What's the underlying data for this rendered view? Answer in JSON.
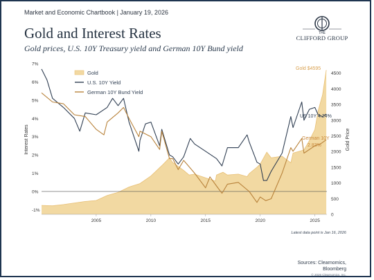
{
  "header": {
    "kicker": "Market and Economic Chartbook | January 19, 2026",
    "title": "Gold and Interest Rates",
    "subtitle": "Gold prices, U.S. 10Y Treasury yield and German 10Y Bund yield"
  },
  "brand": {
    "logo_icon": "clifford-group-seal-icon",
    "the": "THE",
    "name": "CLIFFORD GROUP"
  },
  "colors": {
    "gold_fill": "#f2d9a2",
    "gold_line": "#e8bf74",
    "us10y": "#2f3e52",
    "bund": "#b8823a",
    "zero_line": "#555555"
  },
  "chart_data": {
    "type": "line",
    "xlim": [
      2000,
      2026.1
    ],
    "x_ticks": [
      "2005",
      "2010",
      "2015",
      "2020",
      "2025"
    ],
    "x_tick_values": [
      2005,
      2010,
      2015,
      2020,
      2025
    ],
    "ylabel_left": "Interest Rates",
    "ylabel_right": "Gold Price",
    "ylim_left": [
      -1.25,
      7
    ],
    "ylim_right": [
      0,
      4800
    ],
    "left_ticks": [
      "7%",
      "6%",
      "5%",
      "4%",
      "3%",
      "2%",
      "1%",
      "0%",
      "-1%"
    ],
    "left_tick_values": [
      7,
      6,
      5,
      4,
      3,
      2,
      1,
      0,
      -1
    ],
    "right_ticks": [
      "4500",
      "4000",
      "3500",
      "3000",
      "2500",
      "2000",
      "1500",
      "1000",
      "500",
      "0"
    ],
    "right_tick_values": [
      4500,
      4000,
      3500,
      3000,
      2500,
      2000,
      1500,
      1000,
      500,
      0
    ],
    "legend": [
      "Gold",
      "U.S. 10Y Yield",
      "German 10Y Bund Yield"
    ],
    "legend_position": "top-left",
    "series": [
      {
        "name": "Gold",
        "axis": "right",
        "kind": "area",
        "x": [
          2000,
          2001,
          2002,
          2003,
          2004,
          2005,
          2006,
          2007,
          2008,
          2009,
          2010,
          2011,
          2011.7,
          2012,
          2013,
          2013.5,
          2014,
          2015,
          2015.9,
          2016,
          2016.6,
          2017,
          2018,
          2018.8,
          2019,
          2019.7,
          2020,
          2020.6,
          2021,
          2022,
          2022.8,
          2023,
          2024,
          2024.5,
          2025,
          2025.3,
          2025.7,
          2026.04
        ],
        "values": [
          285,
          270,
          310,
          360,
          410,
          440,
          600,
          700,
          870,
          980,
          1220,
          1550,
          1800,
          1650,
          1400,
          1250,
          1280,
          1160,
          1060,
          1250,
          1340,
          1250,
          1280,
          1200,
          1300,
          1500,
          1600,
          1980,
          1800,
          1850,
          1640,
          1950,
          2050,
          2350,
          2700,
          3300,
          3800,
          4595
        ]
      },
      {
        "name": "U.S. 10Y Yield",
        "axis": "left",
        "x": [
          2000,
          2000.5,
          2001,
          2002,
          2003,
          2003.5,
          2004,
          2005,
          2006,
          2006.5,
          2007,
          2007.5,
          2008,
          2008.9,
          2009,
          2009.5,
          2010,
          2010.8,
          2011,
          2011.7,
          2012,
          2012.5,
          2013,
          2013.6,
          2014,
          2015,
          2016,
          2016.5,
          2017,
          2018,
          2018.8,
          2019,
          2019.7,
          2020,
          2020.3,
          2020.6,
          2021,
          2022,
          2022.8,
          2023,
          2023.8,
          2024,
          2024.5,
          2025,
          2025.3,
          2025.7,
          2026.04
        ],
        "values": [
          6.7,
          6.1,
          5.1,
          4.6,
          4.0,
          3.3,
          4.3,
          4.2,
          4.6,
          5.1,
          4.7,
          5.1,
          3.8,
          2.2,
          2.8,
          3.7,
          3.8,
          2.5,
          3.4,
          2.0,
          1.9,
          1.5,
          1.9,
          2.9,
          2.6,
          2.2,
          1.8,
          1.4,
          2.4,
          2.4,
          3.1,
          2.7,
          1.6,
          1.5,
          0.6,
          0.6,
          1.1,
          2.1,
          4.1,
          3.5,
          4.9,
          3.9,
          4.5,
          4.6,
          4.2,
          4.1,
          4.24
        ]
      },
      {
        "name": "German 10Y Bund Yield",
        "axis": "left",
        "x": [
          2000,
          2001,
          2002,
          2003,
          2004,
          2005,
          2005.7,
          2006,
          2007,
          2007.5,
          2008,
          2008.9,
          2009,
          2010,
          2010.8,
          2011,
          2011.7,
          2012,
          2012.5,
          2013,
          2014,
          2015,
          2015.4,
          2016,
          2016.5,
          2017,
          2018,
          2019,
          2019.7,
          2020,
          2020.5,
          2021,
          2022,
          2022.8,
          2023,
          2023.8,
          2024,
          2025,
          2025.5,
          2026.04
        ],
        "values": [
          5.4,
          4.9,
          4.8,
          4.2,
          4.1,
          3.4,
          3.1,
          3.8,
          4.3,
          4.6,
          4.0,
          3.0,
          3.3,
          3.0,
          2.3,
          3.3,
          1.8,
          1.8,
          1.2,
          1.7,
          1.0,
          0.2,
          0.8,
          0.3,
          -0.1,
          0.4,
          0.5,
          0.0,
          -0.6,
          -0.3,
          -0.5,
          -0.4,
          1.0,
          2.4,
          2.2,
          2.9,
          2.1,
          2.5,
          2.6,
          2.83
        ]
      }
    ],
    "annotations": {
      "gold": "Gold $4595",
      "us10y": "US 10Y 4.24%",
      "bund_line1": "German 10Y",
      "bund_line2": "2.83%"
    }
  },
  "footer": {
    "latest": "Latest data point is Jan 16, 2026",
    "sources_line1": "Sources: Clearnomics,",
    "sources_line2": "Bloomberg",
    "copyright": "© 2026 Clearnomics, Inc."
  }
}
